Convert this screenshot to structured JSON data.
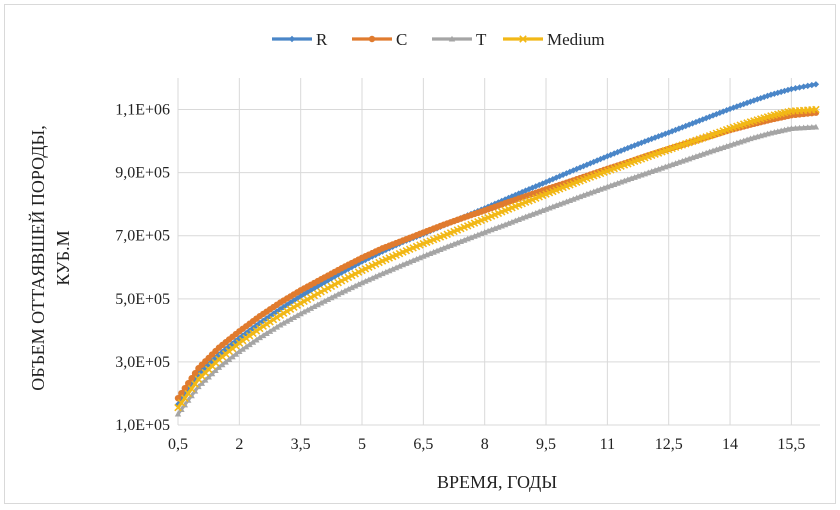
{
  "chart_data": {
    "type": "line",
    "title": "",
    "xlabel": "ВРЕМЯ, ГОДЫ",
    "ylabel_lines": [
      "ОБЪЕМ ОТТАЯВШЕЙ ПОРОДЫ,",
      "КУБ.М"
    ],
    "x_tick_labels": [
      "0,5",
      "2",
      "3,5",
      "5",
      "6,5",
      "8",
      "9,5",
      "11",
      "12,5",
      "14",
      "15,5"
    ],
    "x_ticks": [
      0.5,
      2,
      3.5,
      5,
      6.5,
      8,
      9.5,
      11,
      12.5,
      14,
      15.5
    ],
    "xlim": [
      0.5,
      16.2
    ],
    "y_tick_labels": [
      "1,0E+05",
      "3,0E+05",
      "5,0E+05",
      "7,0E+05",
      "9,0E+05",
      "1,1E+06"
    ],
    "y_ticks": [
      100000,
      300000,
      500000,
      700000,
      900000,
      1100000
    ],
    "ylim": [
      100000,
      1200000
    ],
    "grid": true,
    "legend_position": "top-center",
    "x": [
      0.5,
      1,
      1.5,
      2,
      2.5,
      3,
      3.5,
      4,
      4.5,
      5,
      5.5,
      6,
      6.5,
      7,
      7.5,
      8,
      8.5,
      9,
      9.5,
      10,
      10.5,
      11,
      11.5,
      12,
      12.5,
      13,
      13.5,
      14,
      14.5,
      15,
      15.5,
      16.1
    ],
    "series": [
      {
        "name": "R",
        "color": "#4a86c8",
        "marker": "diamond",
        "values": [
          165000,
          262000,
          323000,
          375000,
          423000,
          467000,
          508000,
          546000,
          583000,
          618000,
          650000,
          680000,
          705000,
          733000,
          760000,
          787000,
          815000,
          843000,
          870000,
          898000,
          925000,
          952000,
          978000,
          1003000,
          1027000,
          1052000,
          1077000,
          1102000,
          1125000,
          1147000,
          1165000,
          1180000
        ]
      },
      {
        "name": "C",
        "color": "#e07b2e",
        "marker": "circle",
        "values": [
          185000,
          280000,
          345000,
          397000,
          445000,
          488000,
          527000,
          562000,
          597000,
          630000,
          660000,
          685000,
          710000,
          735000,
          758000,
          780000,
          803000,
          825000,
          847000,
          868000,
          890000,
          912000,
          933000,
          955000,
          975000,
          995000,
          1015000,
          1035000,
          1052000,
          1068000,
          1082000,
          1090000
        ]
      },
      {
        "name": "T",
        "color": "#a5a5a5",
        "marker": "triangle",
        "values": [
          135000,
          222000,
          283000,
          333000,
          377000,
          417000,
          453000,
          487000,
          520000,
          551000,
          580000,
          608000,
          635000,
          661000,
          686000,
          711000,
          735000,
          760000,
          784000,
          808000,
          832000,
          855000,
          878000,
          900000,
          922000,
          944000,
          966000,
          987000,
          1008000,
          1026000,
          1040000,
          1045000
        ]
      },
      {
        "name": "Medium",
        "color": "#f2b816",
        "marker": "cross",
        "values": [
          155000,
          245000,
          308000,
          360000,
          406000,
          448000,
          486000,
          522000,
          557000,
          590000,
          620000,
          648000,
          675000,
          700000,
          727000,
          753000,
          780000,
          806000,
          832000,
          857000,
          882000,
          905000,
          928000,
          951000,
          973000,
          995000,
          1017000,
          1040000,
          1061000,
          1080000,
          1095000,
          1100000
        ]
      }
    ]
  }
}
